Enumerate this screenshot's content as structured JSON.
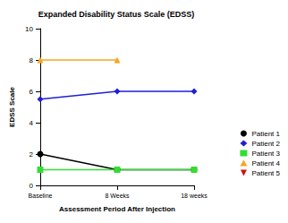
{
  "chart_data": {
    "type": "line",
    "title": "Expanded Disability Status Scale (EDSS)",
    "x_label": "Assessment Period After Injection",
    "y_label": "EDSS Scale",
    "categories": [
      "Baseline",
      "8 Weeks",
      "18 weeks"
    ],
    "series": [
      {
        "name": "Patient 1",
        "color": "#000000",
        "marker": "circle",
        "values": [
          2,
          1,
          1
        ]
      },
      {
        "name": "Patient 2",
        "color": "#1f1fd6",
        "marker": "diamond",
        "values": [
          5.5,
          6,
          6
        ]
      },
      {
        "name": "Patient 3",
        "color": "#33dd33",
        "marker": "square",
        "values": [
          1,
          1,
          1
        ]
      },
      {
        "name": "Patient 4",
        "color": "#f5a623",
        "marker": "triangle",
        "values": [
          8,
          8,
          null
        ]
      },
      {
        "name": "Patient 5",
        "color": "#cc1111",
        "marker": "triangle-down",
        "values": [
          null,
          null,
          null
        ]
      }
    ],
    "ylim": [
      0,
      10
    ],
    "yticks": [
      0,
      2,
      4,
      6,
      8,
      10
    ],
    "grid": false,
    "legend": "right"
  }
}
